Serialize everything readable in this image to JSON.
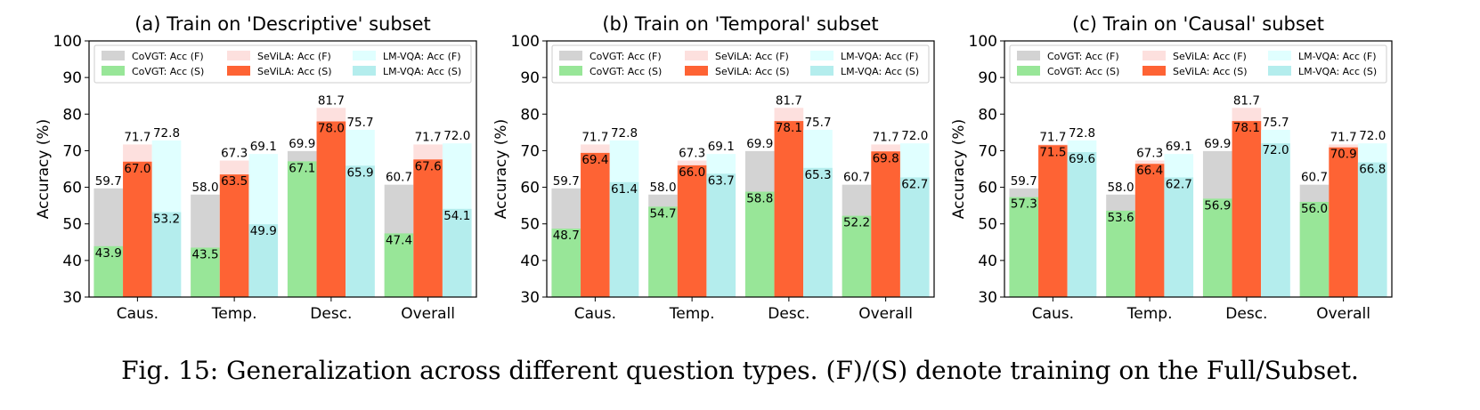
{
  "figure": {
    "caption": "Fig. 15: Generalization across different question types. (F)/(S) denote training on the Full/Subset."
  },
  "chart_data": [
    {
      "type": "bar",
      "title": "(a) Train on 'Descriptive' subset",
      "ylabel": "Accuracy (%)",
      "ylim": [
        30,
        100
      ],
      "yticks": [
        30,
        40,
        50,
        60,
        70,
        80,
        90,
        100
      ],
      "categories": [
        "Caus.",
        "Temp.",
        "Desc.",
        "Overall"
      ],
      "grid": false,
      "legend_position": "top",
      "series": [
        {
          "name": "CoVGT: Acc (F)",
          "model": "CoVGT",
          "setting": "F",
          "color": "#d3d3d3",
          "values": [
            59.7,
            58.0,
            69.9,
            60.7
          ]
        },
        {
          "name": "CoVGT: Acc (S)",
          "model": "CoVGT",
          "setting": "S",
          "color": "#98e698",
          "values": [
            43.9,
            43.5,
            67.1,
            47.4
          ]
        },
        {
          "name": "SeViLA: Acc (F)",
          "model": "SeViLA",
          "setting": "F",
          "color": "#fde0de",
          "values": [
            71.7,
            67.3,
            81.7,
            71.7
          ]
        },
        {
          "name": "SeViLA: Acc (S)",
          "model": "SeViLA",
          "setting": "S",
          "color": "#fe6334",
          "values": [
            67.0,
            63.5,
            78.0,
            67.6
          ]
        },
        {
          "name": "LM-VQA: Acc (F)",
          "model": "LM-VQA",
          "setting": "F",
          "color": "#e0ffff",
          "values": [
            72.8,
            69.1,
            75.7,
            72.0
          ]
        },
        {
          "name": "LM-VQA: Acc (S)",
          "model": "LM-VQA",
          "setting": "S",
          "color": "#b4eded",
          "values": [
            53.2,
            49.9,
            65.9,
            54.1
          ]
        }
      ]
    },
    {
      "type": "bar",
      "title": "(b) Train on 'Temporal' subset",
      "ylabel": "Accuracy (%)",
      "ylim": [
        30,
        100
      ],
      "yticks": [
        30,
        40,
        50,
        60,
        70,
        80,
        90,
        100
      ],
      "categories": [
        "Caus.",
        "Temp.",
        "Desc.",
        "Overall"
      ],
      "grid": false,
      "legend_position": "top",
      "series": [
        {
          "name": "CoVGT: Acc (F)",
          "model": "CoVGT",
          "setting": "F",
          "color": "#d3d3d3",
          "values": [
            59.7,
            58.0,
            69.9,
            60.7
          ]
        },
        {
          "name": "CoVGT: Acc (S)",
          "model": "CoVGT",
          "setting": "S",
          "color": "#98e698",
          "values": [
            48.7,
            54.7,
            58.8,
            52.2
          ]
        },
        {
          "name": "SeViLA: Acc (F)",
          "model": "SeViLA",
          "setting": "F",
          "color": "#fde0de",
          "values": [
            71.7,
            67.3,
            81.7,
            71.7
          ]
        },
        {
          "name": "SeViLA: Acc (S)",
          "model": "SeViLA",
          "setting": "S",
          "color": "#fe6334",
          "values": [
            69.4,
            66.0,
            78.1,
            69.8
          ]
        },
        {
          "name": "LM-VQA: Acc (F)",
          "model": "LM-VQA",
          "setting": "F",
          "color": "#e0ffff",
          "values": [
            72.8,
            69.1,
            75.7,
            72.0
          ]
        },
        {
          "name": "LM-VQA: Acc (S)",
          "model": "LM-VQA",
          "setting": "S",
          "color": "#b4eded",
          "values": [
            61.4,
            63.7,
            65.3,
            62.7
          ]
        }
      ]
    },
    {
      "type": "bar",
      "title": "(c) Train on 'Causal' subset",
      "ylabel": "Accuracy (%)",
      "ylim": [
        30,
        100
      ],
      "yticks": [
        30,
        40,
        50,
        60,
        70,
        80,
        90,
        100
      ],
      "categories": [
        "Caus.",
        "Temp.",
        "Desc.",
        "Overall"
      ],
      "grid": false,
      "legend_position": "top",
      "series": [
        {
          "name": "CoVGT: Acc (F)",
          "model": "CoVGT",
          "setting": "F",
          "color": "#d3d3d3",
          "values": [
            59.7,
            58.0,
            69.9,
            60.7
          ]
        },
        {
          "name": "CoVGT: Acc (S)",
          "model": "CoVGT",
          "setting": "S",
          "color": "#98e698",
          "values": [
            57.3,
            53.6,
            56.9,
            56.0
          ]
        },
        {
          "name": "SeViLA: Acc (F)",
          "model": "SeViLA",
          "setting": "F",
          "color": "#fde0de",
          "values": [
            71.7,
            67.3,
            81.7,
            71.7
          ]
        },
        {
          "name": "SeViLA: Acc (S)",
          "model": "SeViLA",
          "setting": "S",
          "color": "#fe6334",
          "values": [
            71.5,
            66.4,
            78.1,
            70.9
          ]
        },
        {
          "name": "LM-VQA: Acc (F)",
          "model": "LM-VQA",
          "setting": "F",
          "color": "#e0ffff",
          "values": [
            72.8,
            69.1,
            75.7,
            72.0
          ]
        },
        {
          "name": "LM-VQA: Acc (S)",
          "model": "LM-VQA",
          "setting": "S",
          "color": "#b4eded",
          "values": [
            69.6,
            62.7,
            72.0,
            66.8
          ]
        }
      ]
    }
  ]
}
